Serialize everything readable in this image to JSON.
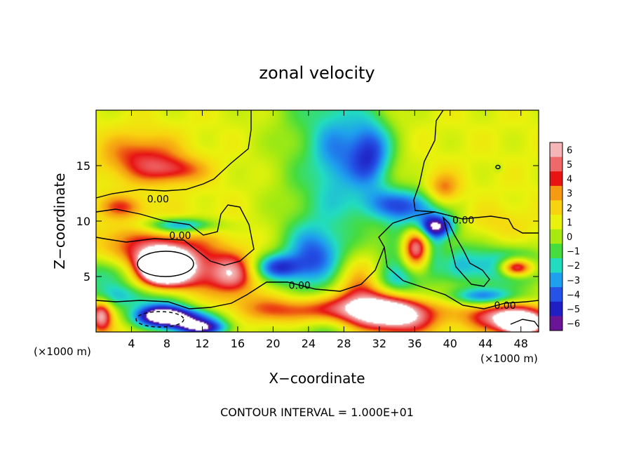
{
  "chart_data": {
    "type": "heatmap",
    "title": "zonal velocity",
    "xlabel": "X−coordinate",
    "ylabel": "Z−coordinate",
    "x_unit": "(×1000 m)",
    "z_unit": "(×1000 m)",
    "footer": "CONTOUR INTERVAL = 1.000E+01",
    "xlim": [
      0,
      50
    ],
    "ylim": [
      0,
      20
    ],
    "x_ticks": [
      4,
      8,
      12,
      16,
      20,
      24,
      28,
      32,
      36,
      40,
      44,
      48
    ],
    "y_ticks": [
      5,
      10,
      15
    ],
    "colorbar": {
      "levels": [
        6,
        5,
        4,
        3,
        2,
        1,
        0,
        -1,
        -2,
        -3,
        -4,
        -5,
        -6
      ],
      "colors": [
        "#f4b6b6",
        "#ee6a6a",
        "#e81414",
        "#f59a12",
        "#f8d410",
        "#e9f20c",
        "#a8ea10",
        "#46dc3e",
        "#22dcc0",
        "#1ea0ee",
        "#2453e6",
        "#1f1fc4",
        "#6a1496"
      ],
      "tick_labels": [
        "6",
        "5",
        "4",
        "3",
        "2",
        "1",
        "0",
        "−1",
        "−2",
        "−3",
        "−4",
        "−5",
        "−6"
      ]
    },
    "contour_labels": [
      {
        "text": "0.00",
        "x": 7.0,
        "z": 12.0
      },
      {
        "text": "0.00",
        "x": 9.5,
        "z": 8.7
      },
      {
        "text": "0.00",
        "x": 23.0,
        "z": 4.2
      },
      {
        "text": "0.00",
        "x": 41.5,
        "z": 10.1
      },
      {
        "text": "0.00",
        "x": 46.2,
        "z": 2.4
      }
    ],
    "features": [
      {
        "x": 5.0,
        "z": 15.8,
        "value": 3.0,
        "rx": 4.5,
        "rz": 2.2
      },
      {
        "x": 9.0,
        "z": 14.6,
        "value": 2.6,
        "rx": 3.5,
        "rz": 1.2
      },
      {
        "x": 39.2,
        "z": 12.6,
        "value": 3.2,
        "rx": 2.0,
        "rz": 1.6
      },
      {
        "x": 2.5,
        "z": 8.0,
        "value": 1.0,
        "rx": 3.0,
        "rz": 2.0
      },
      {
        "x": 8.0,
        "z": 5.8,
        "value": 5.0,
        "rx": 6.5,
        "rz": 3.0
      },
      {
        "x": 7.5,
        "z": 6.0,
        "value": 10.0,
        "rx": 2.6,
        "rz": 1.4
      },
      {
        "x": 2.0,
        "z": 5.3,
        "value": -4.5,
        "rx": 4.0,
        "rz": 1.7
      },
      {
        "x": 5.0,
        "z": 3.2,
        "value": -4.0,
        "rx": 6.5,
        "rz": 1.2
      },
      {
        "x": 10.0,
        "z": 1.2,
        "value": -6.0,
        "rx": 4.5,
        "rz": 1.1
      },
      {
        "x": 7.0,
        "z": 1.5,
        "value": -6.0,
        "rx": 3.0,
        "rz": 1.0
      },
      {
        "x": 12.0,
        "z": 0.3,
        "value": -5.0,
        "rx": 3.0,
        "rz": 0.7
      },
      {
        "x": 0.6,
        "z": 1.5,
        "value": 5.0,
        "rx": 1.2,
        "rz": 1.4
      },
      {
        "x": 15.5,
        "z": 5.2,
        "value": 3.5,
        "rx": 2.5,
        "rz": 1.8
      },
      {
        "x": 9.5,
        "z": 9.6,
        "value": -4.5,
        "rx": 4.0,
        "rz": 0.7
      },
      {
        "x": 3.0,
        "z": 11.3,
        "value": 2.5,
        "rx": 2.5,
        "rz": 1.0
      },
      {
        "x": 20.5,
        "z": 5.8,
        "value": -4.5,
        "rx": 2.8,
        "rz": 1.2
      },
      {
        "x": 24.5,
        "z": 7.0,
        "value": -3.0,
        "rx": 3.0,
        "rz": 2.5
      },
      {
        "x": 25.0,
        "z": 2.0,
        "value": 4.5,
        "rx": 8.5,
        "rz": 1.3
      },
      {
        "x": 30.0,
        "z": 3.5,
        "value": 4.5,
        "rx": 3.0,
        "rz": 2.8
      },
      {
        "x": 34.0,
        "z": 1.5,
        "value": 6.0,
        "rx": 4.0,
        "rz": 1.6
      },
      {
        "x": 33.5,
        "z": 4.5,
        "value": -3.0,
        "rx": 3.0,
        "rz": 1.5
      },
      {
        "x": 31.0,
        "z": 16.0,
        "value": -4.5,
        "rx": 2.5,
        "rz": 3.2
      },
      {
        "x": 35.0,
        "z": 11.5,
        "value": -4.0,
        "rx": 5.0,
        "rz": 1.5
      },
      {
        "x": 36.5,
        "z": 8.0,
        "value": -5.5,
        "rx": 3.5,
        "rz": 2.8
      },
      {
        "x": 36.2,
        "z": 7.7,
        "value": 10.0,
        "rx": 1.7,
        "rz": 1.9
      },
      {
        "x": 38.5,
        "z": 9.5,
        "value": -5.0,
        "rx": 2.0,
        "rz": 1.0
      },
      {
        "x": 39.5,
        "z": 7.0,
        "value": 1.5,
        "rx": 1.2,
        "rz": 1.8
      },
      {
        "x": 42.0,
        "z": 6.0,
        "value": -3.0,
        "rx": 4.0,
        "rz": 2.0
      },
      {
        "x": 47.5,
        "z": 5.8,
        "value": -6.0,
        "rx": 3.2,
        "rz": 1.5
      },
      {
        "x": 47.5,
        "z": 5.8,
        "value": 10.0,
        "rx": 2.0,
        "rz": 0.9
      },
      {
        "x": 46.5,
        "z": 1.4,
        "value": 5.0,
        "rx": 4.5,
        "rz": 1.2
      },
      {
        "x": 48.0,
        "z": 0.7,
        "value": 10.0,
        "rx": 2.0,
        "rz": 0.8
      },
      {
        "x": 44.0,
        "z": 3.2,
        "value": -4.0,
        "rx": 4.5,
        "rz": 0.8
      },
      {
        "x": 45.5,
        "z": 14.8,
        "value": -0.8,
        "rx": 0.5,
        "rz": 0.4
      },
      {
        "x": 27.0,
        "z": 16.0,
        "value": -1.8,
        "rx": 2.5,
        "rz": 4.0
      },
      {
        "x": 45.0,
        "z": 10.0,
        "value": 0.8,
        "rx": 4.0,
        "rz": 1.5
      }
    ],
    "background": {
      "z_low": 1.2,
      "z_high": 0.9,
      "center_x": 26.0,
      "center_dip": -2.2,
      "center_width": 6.0
    }
  }
}
